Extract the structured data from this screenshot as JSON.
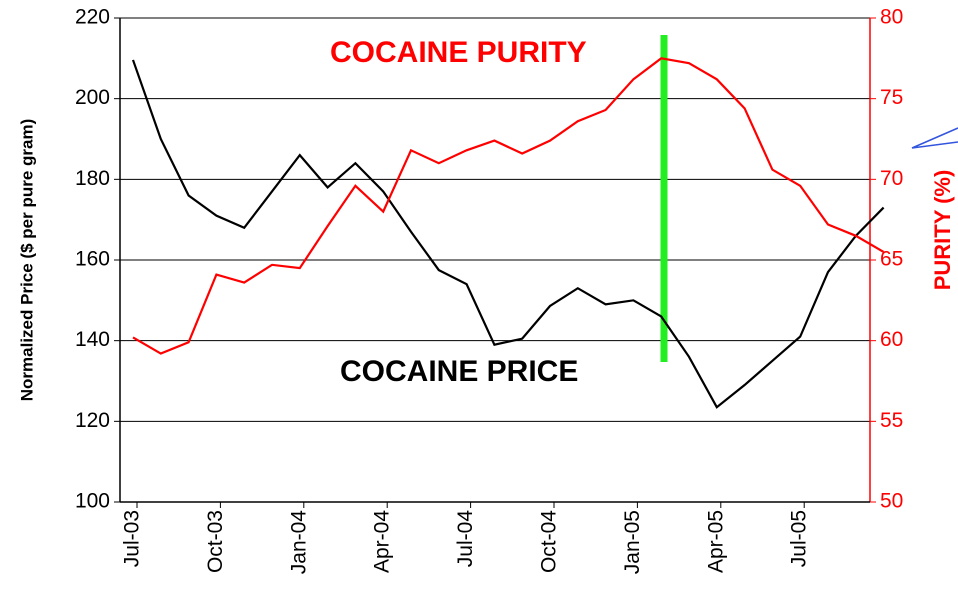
{
  "chart_data": {
    "type": "line",
    "categories": [
      "Jul-03",
      null,
      null,
      "Oct-03",
      null,
      null,
      "Jan-04",
      null,
      null,
      "Apr-04",
      null,
      null,
      "Jul-04",
      null,
      null,
      "Oct-04",
      null,
      null,
      "Jan-05",
      null,
      null,
      "Apr-05",
      null,
      null,
      "Jul-05",
      null,
      null,
      null
    ],
    "series": [
      {
        "name": "COCAINE PRICE",
        "color": "#000000",
        "axis": "y",
        "values": [
          209.6,
          190,
          176,
          171,
          168,
          177,
          186,
          178,
          184,
          177,
          167,
          157.5,
          154,
          139,
          140.5,
          148.6,
          153,
          149,
          150,
          146,
          136,
          123.5,
          129,
          135,
          141,
          157,
          166,
          173
        ]
      },
      {
        "name": "COCAINE PURITY",
        "color": "#ff0000",
        "axis": "y2",
        "values": [
          60.2,
          59.2,
          59.9,
          64.1,
          63.6,
          64.7,
          64.5,
          67.1,
          69.6,
          68.0,
          71.8,
          71.0,
          71.8,
          72.4,
          71.6,
          72.4,
          73.6,
          74.3,
          76.2,
          77.5,
          77.2,
          76.2,
          74.4,
          70.6,
          69.6,
          67.2,
          66.5,
          65.5
        ]
      }
    ],
    "ylabel": "Normalized Price ($ per pure gram)",
    "y2label": "PURITY (%)",
    "ylim": [
      100,
      220
    ],
    "yticks": [
      100,
      120,
      140,
      160,
      180,
      200,
      220
    ],
    "y2lim": [
      50,
      80
    ],
    "y2ticks": [
      50,
      55,
      60,
      65,
      70,
      75,
      80
    ],
    "y2color": "#ff0000",
    "grid": true
  }
}
